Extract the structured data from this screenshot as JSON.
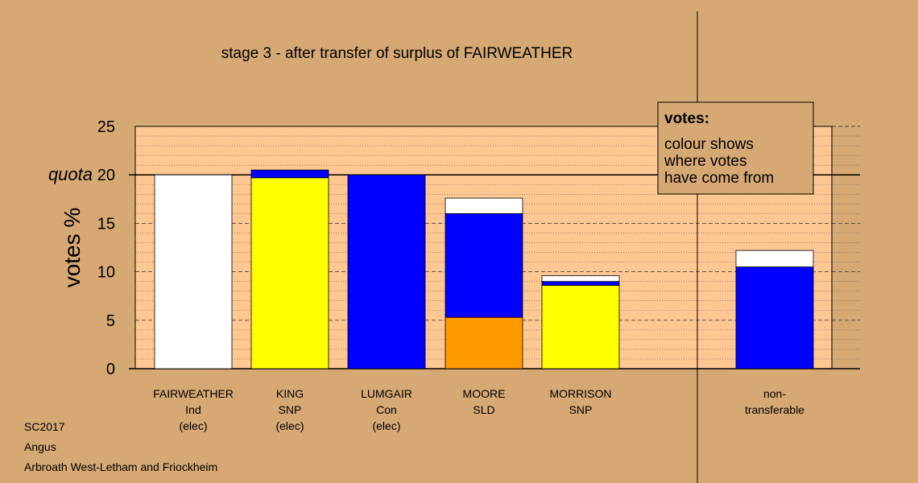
{
  "chart_data": {
    "type": "bar",
    "stacked": true,
    "title": "stage 3 - after transfer of surplus of FAIRWEATHER",
    "ylabel": "votes %",
    "ylim": [
      0,
      25
    ],
    "yticks": [
      0,
      5,
      10,
      15,
      20,
      25
    ],
    "quota": 20,
    "quota_label": "quota",
    "categories": [
      {
        "lines": [
          "FAIRWEATHER",
          "Ind",
          "(elec)"
        ]
      },
      {
        "lines": [
          "KING",
          "SNP",
          "(elec)"
        ]
      },
      {
        "lines": [
          "LUMGAIR",
          "Con",
          "(elec)"
        ]
      },
      {
        "lines": [
          "MOORE",
          "SLD"
        ]
      },
      {
        "lines": [
          "MORRISON",
          "SNP"
        ]
      },
      {
        "lines": [
          "non-",
          "transferable"
        ]
      }
    ],
    "bars": [
      {
        "segments": [
          {
            "value": 20.0,
            "color": "#ffffff"
          }
        ]
      },
      {
        "segments": [
          {
            "value": 19.7,
            "color": "#ffff00"
          },
          {
            "value": 0.8,
            "color": "#0000ff"
          }
        ]
      },
      {
        "segments": [
          {
            "value": 20.0,
            "color": "#0000ff"
          }
        ]
      },
      {
        "segments": [
          {
            "value": 5.3,
            "color": "#ff9900"
          },
          {
            "value": 10.7,
            "color": "#0000ff"
          },
          {
            "value": 1.6,
            "color": "#ffffff"
          }
        ]
      },
      {
        "segments": [
          {
            "value": 8.6,
            "color": "#ffff00"
          },
          {
            "value": 0.4,
            "color": "#0000ff"
          },
          {
            "value": 0.6,
            "color": "#ffffff"
          }
        ]
      },
      {
        "segments": [
          {
            "value": 10.5,
            "color": "#0000ff"
          },
          {
            "value": 1.7,
            "color": "#ffffff"
          }
        ]
      }
    ],
    "legend": {
      "title": "votes:",
      "lines": [
        "colour shows",
        "where votes",
        "have come from"
      ],
      "position": "top-right"
    },
    "grid": true,
    "colors": {
      "page_background": "#d5a874",
      "plot_background": "#ffc792"
    }
  },
  "footer": [
    "SC2017",
    "Angus",
    "Arbroath West-Letham and Friockheim"
  ]
}
